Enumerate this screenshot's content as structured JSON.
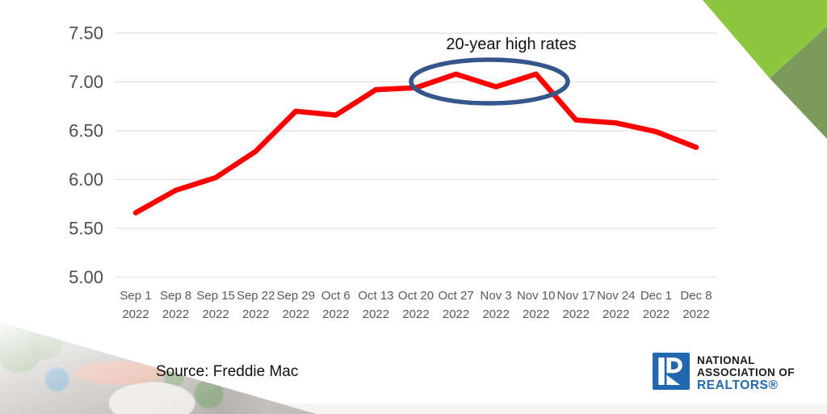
{
  "chart_data": {
    "type": "line",
    "title": "",
    "annotation": "20-year high rates",
    "categories": [
      "Sep 1",
      "Sep 8",
      "Sep 15",
      "Sep 22",
      "Sep 29",
      "Oct 6",
      "Oct 13",
      "Oct 20",
      "Oct 27",
      "Nov 3",
      "Nov 10",
      "Nov 17",
      "Nov 24",
      "Dec 1",
      "Dec 8"
    ],
    "category_year": "2022",
    "values": [
      5.66,
      5.89,
      6.02,
      6.29,
      6.7,
      6.66,
      6.92,
      6.94,
      7.08,
      6.95,
      7.08,
      6.61,
      6.58,
      6.49,
      6.33
    ],
    "y_ticks": [
      "5.00",
      "5.50",
      "6.00",
      "6.50",
      "7.00",
      "7.50"
    ],
    "ylim": [
      5.0,
      7.5
    ],
    "grid": true,
    "legend": "none",
    "line_color": "#FF0000",
    "grid_color": "#E2E2E2",
    "tick_label_color": "#595959",
    "ellipse_color": "#35558D"
  },
  "source": {
    "label": "Source: Freddie Mac"
  },
  "logo": {
    "line1": "NATIONAL",
    "line2": "ASSOCIATION OF",
    "line3": "REALTORS®",
    "blue": "#2268B1"
  },
  "decor": {
    "corner_green_light": "#8DC63F",
    "corner_green_dark": "#7A9B59"
  }
}
